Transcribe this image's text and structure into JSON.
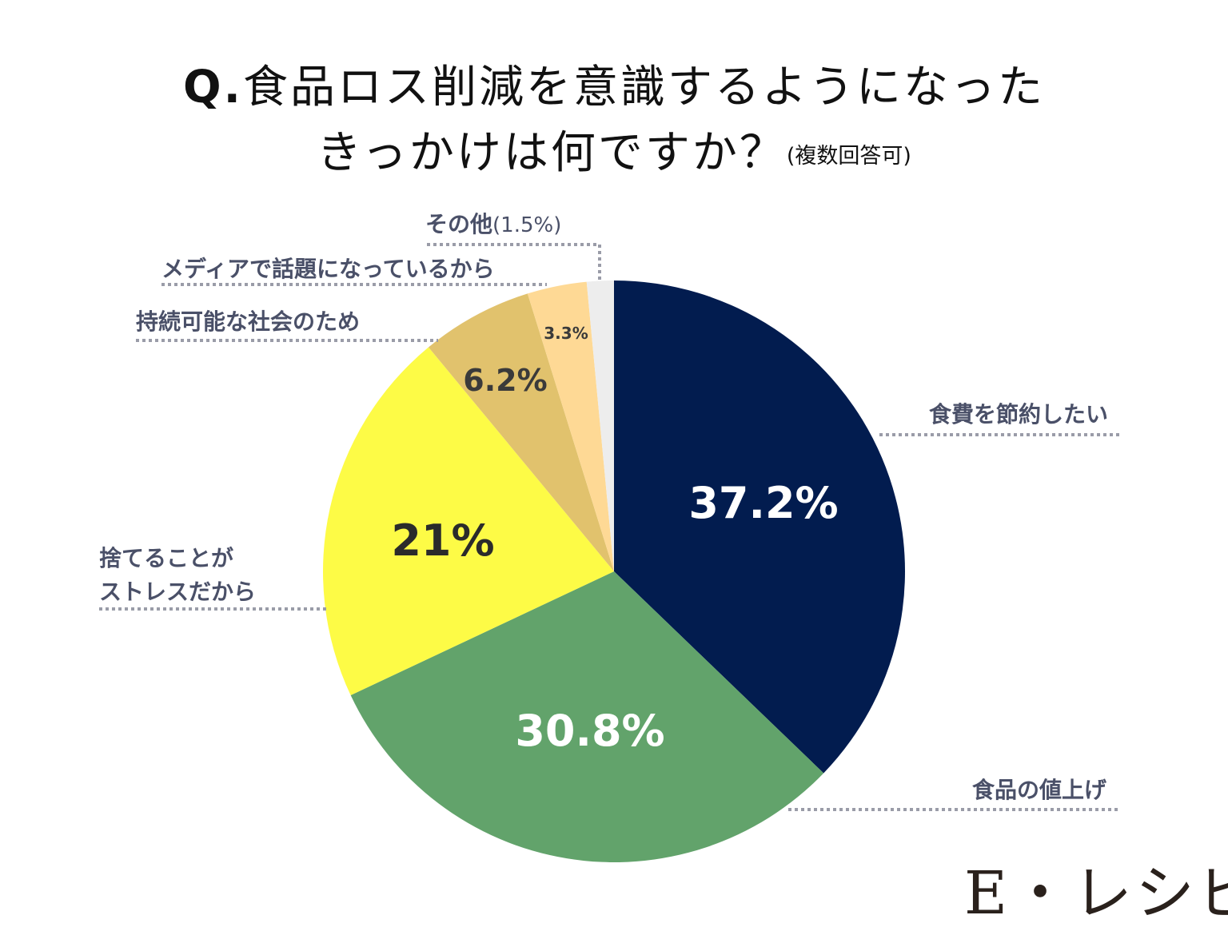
{
  "title": {
    "prefix": "Q.",
    "line1": "食品ロス削減を意識するようになった",
    "line2": "きっかけは何ですか？",
    "note": "(複数回答可)"
  },
  "brand": "E・レシピ",
  "chart_data": {
    "type": "pie",
    "start_angle_deg": 0,
    "direction": "clockwise",
    "slices": [
      {
        "label": "食費を節約したい",
        "value": 37.2,
        "display": "37.2%",
        "color": "#021c4f",
        "text_color": "#ffffff"
      },
      {
        "label": "食品の値上げ",
        "value": 30.8,
        "display": "30.8%",
        "color": "#62a36b",
        "text_color": "#ffffff"
      },
      {
        "label": "捨てることがストレスだから",
        "value": 21,
        "display": "21%",
        "color": "#fdfb46",
        "text_color": "#2b2b2b"
      },
      {
        "label": "持続可能な社会のため",
        "value": 6.2,
        "display": "6.2%",
        "color": "#e1c26d",
        "text_color": "#3a3a3a"
      },
      {
        "label": "メディアで話題になっているから",
        "value": 3.3,
        "display": "3.3%",
        "color": "#fed995",
        "text_color": "#3a3a3a"
      },
      {
        "label": "その他",
        "value": 1.5,
        "display": "(1.5%)",
        "color": "#ededed",
        "text_color": "#4a5068"
      }
    ]
  }
}
